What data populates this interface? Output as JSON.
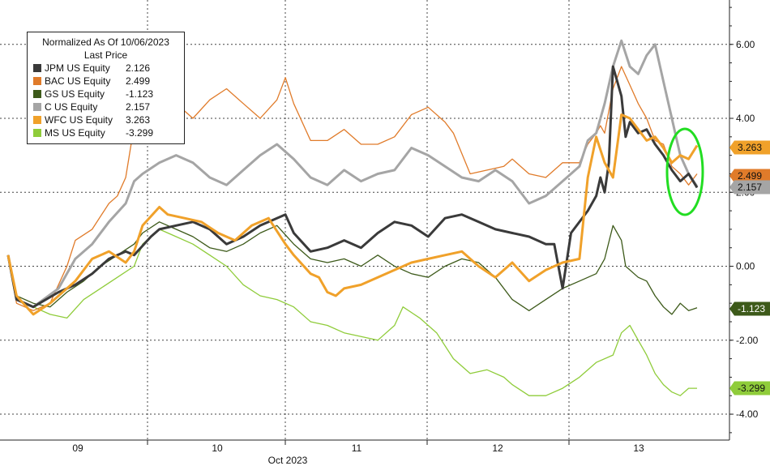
{
  "chart_data": {
    "type": "line",
    "legend": {
      "title_line1": "Normalized As Of 10/06/2023",
      "title_line2": "Last Price",
      "placement": "top-left"
    },
    "x_axis": {
      "day_labels": [
        "09",
        "10",
        "11",
        "12",
        "13"
      ],
      "month_label": "Oct 2023"
    },
    "y_axis": {
      "position": "right",
      "range": [
        -4.7,
        7.2
      ],
      "ticks": [
        6,
        4,
        2,
        0,
        -2,
        -4
      ],
      "tick_labels": [
        "6.00",
        "4.00",
        "2.00",
        "0.00",
        "-2.00",
        "-4.00"
      ]
    },
    "grid": true,
    "annotation": {
      "type": "ellipse",
      "color": "#22dd22"
    },
    "series": [
      {
        "name": "JPM US Equity",
        "last": "2.126",
        "color": "#3a3a3a",
        "width": 3,
        "points": [
          [
            0,
            0.3
          ],
          [
            0.1,
            -0.9
          ],
          [
            0.3,
            -1.1
          ],
          [
            0.6,
            -0.7
          ],
          [
            0.8,
            -0.5
          ],
          [
            1.0,
            -0.2
          ],
          [
            1.2,
            0.2
          ],
          [
            1.4,
            0.4
          ],
          [
            1.5,
            0.3
          ],
          [
            1.7,
            0.8
          ],
          [
            1.8,
            1.0
          ],
          [
            2.0,
            1.1
          ],
          [
            2.2,
            1.2
          ],
          [
            2.4,
            1.0
          ],
          [
            2.6,
            0.6
          ],
          [
            2.8,
            0.8
          ],
          [
            3.0,
            1.1
          ],
          [
            3.3,
            1.4
          ],
          [
            3.4,
            0.9
          ],
          [
            3.6,
            0.4
          ],
          [
            3.8,
            0.5
          ],
          [
            4.0,
            0.7
          ],
          [
            4.2,
            0.5
          ],
          [
            4.4,
            0.9
          ],
          [
            4.6,
            1.2
          ],
          [
            4.8,
            1.1
          ],
          [
            5.0,
            0.8
          ],
          [
            5.2,
            1.3
          ],
          [
            5.4,
            1.4
          ],
          [
            5.6,
            1.2
          ],
          [
            5.8,
            1.0
          ],
          [
            6.0,
            0.9
          ],
          [
            6.2,
            0.8
          ],
          [
            6.4,
            0.6
          ],
          [
            6.5,
            0.6
          ],
          [
            6.6,
            -0.6
          ],
          [
            6.7,
            0.9
          ],
          [
            6.9,
            1.5
          ],
          [
            7.0,
            1.9
          ],
          [
            7.05,
            2.4
          ],
          [
            7.1,
            2.0
          ],
          [
            7.15,
            2.8
          ],
          [
            7.2,
            5.4
          ],
          [
            7.3,
            4.6
          ],
          [
            7.35,
            3.5
          ],
          [
            7.4,
            3.9
          ],
          [
            7.5,
            3.6
          ],
          [
            7.6,
            3.7
          ],
          [
            7.7,
            3.3
          ],
          [
            7.8,
            3.0
          ],
          [
            7.9,
            2.6
          ],
          [
            8.0,
            2.3
          ],
          [
            8.1,
            2.5
          ],
          [
            8.2,
            2.126
          ]
        ]
      },
      {
        "name": "BAC US Equity",
        "last": "2.499",
        "color": "#e07b2a",
        "width": 1.3,
        "points": [
          [
            0,
            0.3
          ],
          [
            0.1,
            -1.0
          ],
          [
            0.3,
            -1.2
          ],
          [
            0.5,
            -1.0
          ],
          [
            0.7,
            0.0
          ],
          [
            0.8,
            0.7
          ],
          [
            1.0,
            1.0
          ],
          [
            1.2,
            1.7
          ],
          [
            1.3,
            1.9
          ],
          [
            1.4,
            2.4
          ],
          [
            1.5,
            3.8
          ],
          [
            1.6,
            4.0
          ],
          [
            1.8,
            4.6
          ],
          [
            2.0,
            4.4
          ],
          [
            2.2,
            4.0
          ],
          [
            2.4,
            4.5
          ],
          [
            2.6,
            4.8
          ],
          [
            2.8,
            4.4
          ],
          [
            3.0,
            4.0
          ],
          [
            3.2,
            4.5
          ],
          [
            3.3,
            5.1
          ],
          [
            3.4,
            4.4
          ],
          [
            3.6,
            3.4
          ],
          [
            3.8,
            3.4
          ],
          [
            4.0,
            3.7
          ],
          [
            4.2,
            3.3
          ],
          [
            4.4,
            3.3
          ],
          [
            4.6,
            3.5
          ],
          [
            4.8,
            4.1
          ],
          [
            5.0,
            4.3
          ],
          [
            5.2,
            3.9
          ],
          [
            5.3,
            3.6
          ],
          [
            5.5,
            2.5
          ],
          [
            5.7,
            2.6
          ],
          [
            5.9,
            2.7
          ],
          [
            6.0,
            2.9
          ],
          [
            6.2,
            2.5
          ],
          [
            6.4,
            2.4
          ],
          [
            6.6,
            2.8
          ],
          [
            6.8,
            2.8
          ],
          [
            6.9,
            3.3
          ],
          [
            7.0,
            3.6
          ],
          [
            7.05,
            3.8
          ],
          [
            7.1,
            3.6
          ],
          [
            7.2,
            4.8
          ],
          [
            7.3,
            5.4
          ],
          [
            7.4,
            4.9
          ],
          [
            7.5,
            4.4
          ],
          [
            7.6,
            4.0
          ],
          [
            7.7,
            3.4
          ],
          [
            7.8,
            3.3
          ],
          [
            7.9,
            2.7
          ],
          [
            8.0,
            2.5
          ],
          [
            8.1,
            2.2
          ],
          [
            8.2,
            2.499
          ]
        ]
      },
      {
        "name": "GS US Equity",
        "last": "-1.123",
        "color": "#3d5a1a",
        "width": 1.3,
        "points": [
          [
            0,
            0.3
          ],
          [
            0.1,
            -0.8
          ],
          [
            0.3,
            -1.0
          ],
          [
            0.5,
            -1.1
          ],
          [
            0.7,
            -0.7
          ],
          [
            0.9,
            -0.4
          ],
          [
            1.1,
            0.0
          ],
          [
            1.3,
            0.3
          ],
          [
            1.5,
            0.6
          ],
          [
            1.6,
            0.9
          ],
          [
            1.8,
            1.2
          ],
          [
            2.0,
            1.0
          ],
          [
            2.2,
            0.8
          ],
          [
            2.4,
            0.5
          ],
          [
            2.6,
            0.4
          ],
          [
            2.8,
            0.6
          ],
          [
            3.0,
            0.9
          ],
          [
            3.2,
            1.1
          ],
          [
            3.4,
            0.6
          ],
          [
            3.6,
            0.2
          ],
          [
            3.8,
            0.1
          ],
          [
            4.0,
            0.2
          ],
          [
            4.2,
            0.0
          ],
          [
            4.4,
            0.3
          ],
          [
            4.6,
            0.0
          ],
          [
            4.8,
            -0.2
          ],
          [
            5.0,
            -0.3
          ],
          [
            5.2,
            0.0
          ],
          [
            5.4,
            0.2
          ],
          [
            5.6,
            0.1
          ],
          [
            5.8,
            -0.3
          ],
          [
            6.0,
            -0.9
          ],
          [
            6.2,
            -1.2
          ],
          [
            6.4,
            -0.9
          ],
          [
            6.6,
            -0.6
          ],
          [
            6.8,
            -0.4
          ],
          [
            7.0,
            -0.2
          ],
          [
            7.1,
            0.2
          ],
          [
            7.2,
            1.1
          ],
          [
            7.3,
            0.7
          ],
          [
            7.35,
            0.0
          ],
          [
            7.5,
            -0.3
          ],
          [
            7.6,
            -0.4
          ],
          [
            7.7,
            -0.8
          ],
          [
            7.8,
            -1.1
          ],
          [
            7.9,
            -1.3
          ],
          [
            8.0,
            -1.0
          ],
          [
            8.1,
            -1.2
          ],
          [
            8.2,
            -1.123
          ]
        ]
      },
      {
        "name": "C US Equity",
        "last": "2.157",
        "color": "#a5a5a5",
        "width": 3,
        "points": [
          [
            0,
            0.3
          ],
          [
            0.1,
            -0.9
          ],
          [
            0.3,
            -1.1
          ],
          [
            0.6,
            -0.6
          ],
          [
            0.8,
            0.2
          ],
          [
            1.0,
            0.6
          ],
          [
            1.2,
            1.2
          ],
          [
            1.4,
            1.7
          ],
          [
            1.5,
            2.3
          ],
          [
            1.6,
            2.5
          ],
          [
            1.8,
            2.8
          ],
          [
            2.0,
            3.0
          ],
          [
            2.2,
            2.8
          ],
          [
            2.4,
            2.4
          ],
          [
            2.6,
            2.2
          ],
          [
            2.8,
            2.6
          ],
          [
            3.0,
            3.0
          ],
          [
            3.2,
            3.3
          ],
          [
            3.4,
            2.9
          ],
          [
            3.6,
            2.4
          ],
          [
            3.8,
            2.2
          ],
          [
            4.0,
            2.6
          ],
          [
            4.2,
            2.3
          ],
          [
            4.4,
            2.5
          ],
          [
            4.6,
            2.6
          ],
          [
            4.8,
            3.2
          ],
          [
            5.0,
            3.0
          ],
          [
            5.2,
            2.7
          ],
          [
            5.4,
            2.4
          ],
          [
            5.6,
            2.3
          ],
          [
            5.8,
            2.6
          ],
          [
            6.0,
            2.3
          ],
          [
            6.2,
            1.7
          ],
          [
            6.4,
            1.9
          ],
          [
            6.6,
            2.3
          ],
          [
            6.8,
            2.7
          ],
          [
            6.9,
            3.4
          ],
          [
            7.0,
            3.6
          ],
          [
            7.1,
            4.4
          ],
          [
            7.2,
            5.4
          ],
          [
            7.3,
            6.1
          ],
          [
            7.4,
            5.4
          ],
          [
            7.5,
            5.2
          ],
          [
            7.6,
            5.7
          ],
          [
            7.7,
            6.0
          ],
          [
            7.8,
            5.0
          ],
          [
            7.9,
            4.0
          ],
          [
            8.0,
            3.0
          ],
          [
            8.1,
            2.5
          ],
          [
            8.2,
            2.157
          ]
        ]
      },
      {
        "name": "WFC US Equity",
        "last": "3.263",
        "color": "#f0a12a",
        "width": 3,
        "points": [
          [
            0,
            0.3
          ],
          [
            0.1,
            -0.8
          ],
          [
            0.3,
            -1.3
          ],
          [
            0.5,
            -1.0
          ],
          [
            0.7,
            -0.6
          ],
          [
            0.8,
            -0.4
          ],
          [
            1.0,
            0.2
          ],
          [
            1.2,
            0.4
          ],
          [
            1.4,
            0.1
          ],
          [
            1.5,
            0.4
          ],
          [
            1.6,
            1.1
          ],
          [
            1.8,
            1.6
          ],
          [
            1.9,
            1.4
          ],
          [
            2.1,
            1.3
          ],
          [
            2.3,
            1.2
          ],
          [
            2.5,
            0.9
          ],
          [
            2.7,
            0.7
          ],
          [
            2.9,
            1.1
          ],
          [
            3.1,
            1.3
          ],
          [
            3.3,
            0.6
          ],
          [
            3.4,
            0.3
          ],
          [
            3.6,
            -0.2
          ],
          [
            3.7,
            -0.3
          ],
          [
            3.8,
            -0.7
          ],
          [
            3.9,
            -0.8
          ],
          [
            4.0,
            -0.6
          ],
          [
            4.2,
            -0.5
          ],
          [
            4.4,
            -0.3
          ],
          [
            4.6,
            -0.1
          ],
          [
            4.8,
            0.1
          ],
          [
            5.0,
            0.2
          ],
          [
            5.2,
            0.3
          ],
          [
            5.4,
            0.4
          ],
          [
            5.6,
            0.0
          ],
          [
            5.8,
            -0.3
          ],
          [
            6.0,
            0.1
          ],
          [
            6.2,
            -0.4
          ],
          [
            6.4,
            -0.1
          ],
          [
            6.6,
            0.1
          ],
          [
            6.8,
            0.2
          ],
          [
            6.9,
            2.4
          ],
          [
            7.0,
            3.5
          ],
          [
            7.1,
            2.8
          ],
          [
            7.2,
            2.4
          ],
          [
            7.3,
            4.1
          ],
          [
            7.4,
            4.0
          ],
          [
            7.5,
            3.7
          ],
          [
            7.6,
            3.4
          ],
          [
            7.7,
            3.5
          ],
          [
            7.8,
            3.2
          ],
          [
            7.9,
            2.8
          ],
          [
            8.0,
            3.0
          ],
          [
            8.1,
            2.9
          ],
          [
            8.2,
            3.263
          ]
        ]
      },
      {
        "name": "MS US Equity",
        "last": "-3.299",
        "color": "#8fcc3a",
        "width": 1.3,
        "points": [
          [
            0,
            0.3
          ],
          [
            0.1,
            -0.9
          ],
          [
            0.3,
            -1.1
          ],
          [
            0.5,
            -1.3
          ],
          [
            0.7,
            -1.4
          ],
          [
            0.9,
            -0.9
          ],
          [
            1.1,
            -0.6
          ],
          [
            1.3,
            -0.3
          ],
          [
            1.5,
            0.0
          ],
          [
            1.6,
            0.6
          ],
          [
            1.8,
            1.0
          ],
          [
            2.0,
            0.8
          ],
          [
            2.2,
            0.6
          ],
          [
            2.4,
            0.3
          ],
          [
            2.6,
            0.0
          ],
          [
            2.8,
            -0.5
          ],
          [
            3.0,
            -0.8
          ],
          [
            3.2,
            -0.9
          ],
          [
            3.4,
            -1.1
          ],
          [
            3.6,
            -1.5
          ],
          [
            3.8,
            -1.6
          ],
          [
            4.0,
            -1.8
          ],
          [
            4.2,
            -1.9
          ],
          [
            4.4,
            -2.0
          ],
          [
            4.6,
            -1.6
          ],
          [
            4.7,
            -1.1
          ],
          [
            4.9,
            -1.4
          ],
          [
            5.1,
            -1.8
          ],
          [
            5.3,
            -2.5
          ],
          [
            5.5,
            -2.9
          ],
          [
            5.7,
            -2.8
          ],
          [
            5.9,
            -3.0
          ],
          [
            6.0,
            -3.2
          ],
          [
            6.2,
            -3.5
          ],
          [
            6.4,
            -3.5
          ],
          [
            6.6,
            -3.3
          ],
          [
            6.8,
            -3.0
          ],
          [
            7.0,
            -2.6
          ],
          [
            7.2,
            -2.4
          ],
          [
            7.3,
            -1.8
          ],
          [
            7.4,
            -1.6
          ],
          [
            7.5,
            -2.0
          ],
          [
            7.6,
            -2.4
          ],
          [
            7.7,
            -2.9
          ],
          [
            7.8,
            -3.2
          ],
          [
            7.9,
            -3.4
          ],
          [
            8.0,
            -3.5
          ],
          [
            8.1,
            -3.3
          ],
          [
            8.2,
            -3.299
          ]
        ]
      }
    ]
  }
}
